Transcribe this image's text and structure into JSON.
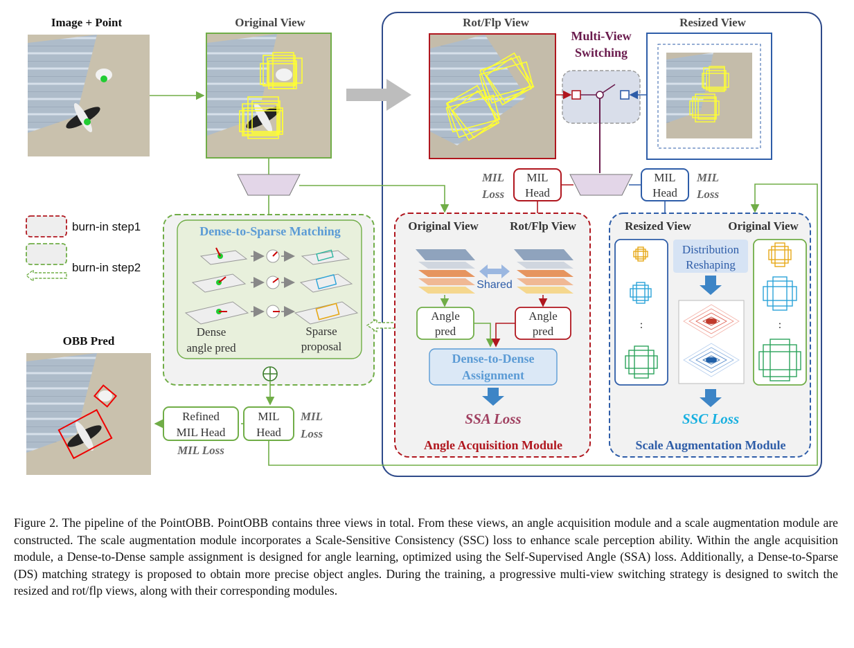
{
  "panels": {
    "image_point": "Image + Point",
    "original_view": "Original View",
    "rot_flp_view": "Rot/Flp View",
    "resized_view": "Resized View",
    "multi_view_switching": [
      "Multi-View",
      "Switching"
    ],
    "obb_pred": "OBB Pred"
  },
  "legend": {
    "step1": "burn-in step1",
    "step2": "burn-in step2"
  },
  "mil": {
    "head_left": [
      "MIL",
      "Head"
    ],
    "loss_left": [
      "MIL",
      "Loss"
    ],
    "head_right": [
      "MIL",
      "Head"
    ],
    "loss_right": [
      "MIL",
      "Loss"
    ],
    "head_bottom": [
      "MIL",
      "Head"
    ],
    "loss_bottom": [
      "MIL",
      "Loss"
    ],
    "refined_head": [
      "Refined",
      "MIL Head"
    ],
    "refined_loss": "MIL Loss"
  },
  "ds_matching": {
    "title": "Dense-to-Sparse Matching",
    "dense_label": [
      "Dense",
      "angle pred"
    ],
    "sparse_label": [
      "Sparse",
      "proposal"
    ]
  },
  "angle_module": {
    "title": "Angle Acquisition Module",
    "col_left": "Original View",
    "col_right": "Rot/Flp View",
    "shared": "Shared",
    "angle_pred_left": [
      "Angle",
      "pred"
    ],
    "angle_pred_right": [
      "Angle",
      "pred"
    ],
    "assignment": [
      "Dense-to-Dense",
      "Assignment"
    ],
    "loss": "SSA Loss"
  },
  "scale_module": {
    "title": "Scale Augmentation Module",
    "col_left": "Resized View",
    "col_right": "Original View",
    "reshaping": [
      "Distribution",
      "Reshaping"
    ],
    "loss": "SSC Loss",
    "ellipsis": ":"
  },
  "caption": "Figure 2.  The pipeline of the PointOBB. PointOBB contains three views in total.  From these views, an angle acquisition module and a scale augmentation module are constructed. The scale augmentation module incorporates a Scale-Sensitive Consistency (SSC) loss to enhance scale perception ability. Within the angle acquisition module, a Dense-to-Dense sample assignment is designed for angle learning, optimized using the Self-Supervised Angle (SSA) loss. Additionally, a Dense-to-Sparse (DS) matching strategy is proposed to obtain more precise object angles. During the training, a progressive multi-view switching strategy is designed to switch the resized and rot/flp views, along with their corresponding modules.",
  "colors": {
    "red": "#b0161e",
    "blue": "#2e5da8",
    "green": "#70ad47",
    "purple": "#6a1b4d",
    "yellow": "#ffff33"
  }
}
